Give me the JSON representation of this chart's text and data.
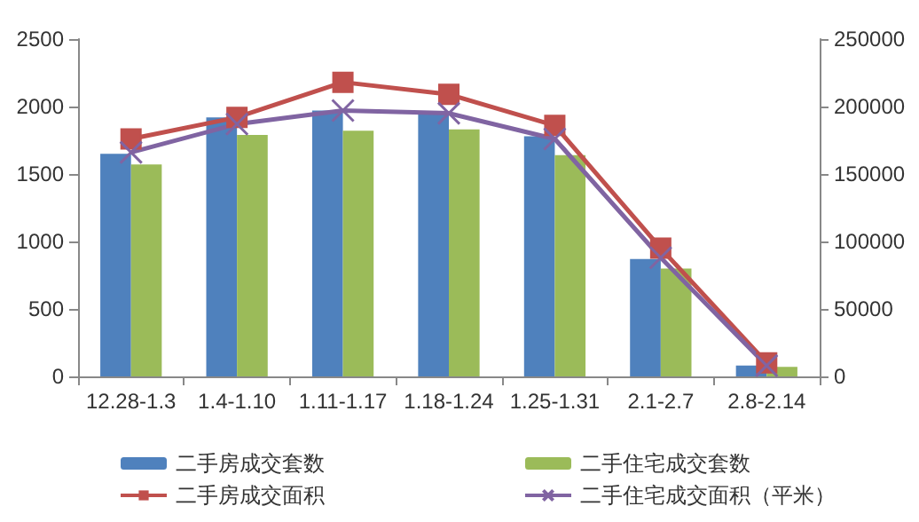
{
  "chart_data": {
    "type": "bar",
    "categories": [
      "12.28-1.3",
      "1.4-1.10",
      "1.11-1.17",
      "1.18-1.24",
      "1.25-1.31",
      "2.1-2.7",
      "2.8-2.14"
    ],
    "series": [
      {
        "name": "二手房成交套数",
        "color": "#4f81bd",
        "values": [
          1650,
          1920,
          1970,
          1950,
          1780,
          870,
          80
        ]
      },
      {
        "name": "二手住宅成交套数",
        "color": "#9bbb59",
        "values": [
          1570,
          1790,
          1820,
          1830,
          1640,
          800,
          70
        ]
      },
      {
        "name": "二手房成交面积",
        "type": "line",
        "axis": "y2",
        "color": "#c0504d",
        "marker": "square",
        "values": [
          176000,
          192000,
          218000,
          209000,
          186000,
          95000,
          10000
        ]
      },
      {
        "name": "二手住宅成交面积（平米）",
        "type": "line",
        "axis": "y2",
        "color": "#8064a2",
        "marker": "cross",
        "values": [
          166000,
          187000,
          197000,
          195000,
          176000,
          88000,
          8000
        ]
      }
    ],
    "ylim": [
      0,
      2500
    ],
    "yticks": [
      0,
      500,
      1000,
      1500,
      2000,
      2500
    ],
    "y2lim": [
      0,
      250000
    ],
    "y2ticks": [
      0,
      50000,
      100000,
      150000,
      200000,
      250000
    ],
    "legend": "bottom"
  }
}
